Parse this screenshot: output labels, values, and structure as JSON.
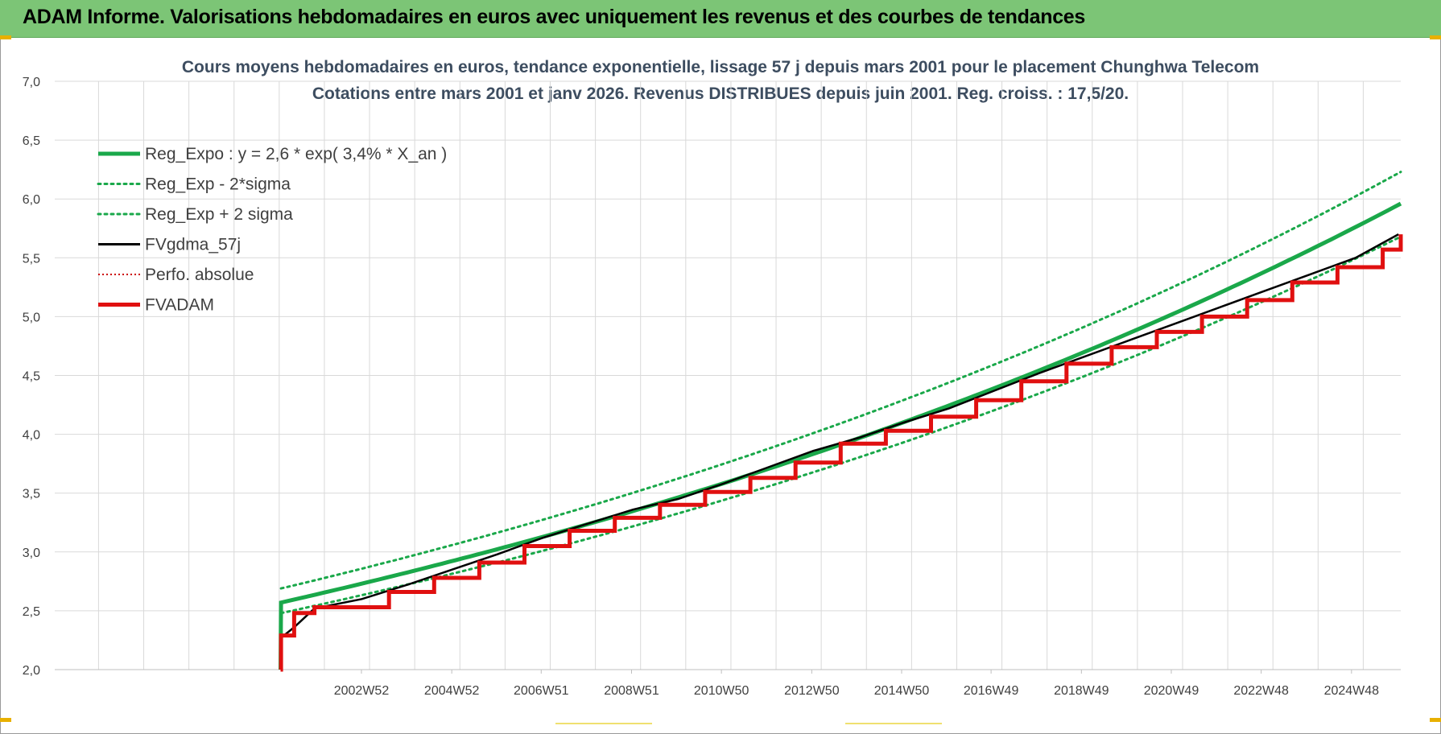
{
  "banner": {
    "title": "ADAM Informe. Valorisations hebdomadaires en euros avec uniquement les revenus et des courbes de tendances"
  },
  "chart_data": {
    "type": "line",
    "title": "Cours moyens hebdomadaires en euros, tendance exponentielle, lissage 57 j depuis mars 2001 pour le placement Chunghwa Telecom",
    "subtitle": "Cotations entre mars 2001 et janv 2026. Revenus DISTRIBUES depuis juin 2001. Reg. croiss. : 17,5/20.",
    "xlabel": "",
    "ylabel": "",
    "ylim": [
      2.0,
      7.0
    ],
    "xlim": [
      1996.2,
      2026.0
    ],
    "y_ticks": [
      "2,0",
      "2,5",
      "3,0",
      "3,5",
      "4,0",
      "4,5",
      "5,0",
      "5,5",
      "6,0",
      "6,5",
      "7,0"
    ],
    "x_tick_labels": [
      "2002W52",
      "2004W52",
      "2006W51",
      "2008W51",
      "2010W50",
      "2012W50",
      "2014W50",
      "2016W49",
      "2018W49",
      "2020W49",
      "2022W48",
      "2024W48"
    ],
    "x_tick_positions": [
      2002.99,
      2004.99,
      2006.97,
      2008.97,
      2010.96,
      2012.96,
      2014.95,
      2016.93,
      2018.93,
      2020.92,
      2022.91,
      2024.91
    ],
    "grid": true,
    "legend_position": "top-left",
    "series": [
      {
        "name": "Reg_Expo : y = 2,6 * exp( 3,4% *  X_an )",
        "color": "#1aa84a",
        "style": "solid-thick",
        "x": [
          2001.2,
          2001.21,
          2026.0
        ],
        "y": [
          2.0,
          2.57,
          5.96
        ]
      },
      {
        "name": "Reg_Exp - 2*sigma",
        "color": "#1aa84a",
        "style": "dotted",
        "x": [
          2001.21,
          2026.0
        ],
        "y": [
          2.48,
          5.68
        ]
      },
      {
        "name": "Reg_Exp + 2 sigma",
        "color": "#1aa84a",
        "style": "dotted",
        "x": [
          2001.21,
          2026.0
        ],
        "y": [
          2.69,
          6.23
        ]
      },
      {
        "name": "FVgdma_57j",
        "color": "#000000",
        "style": "solid-smooth",
        "x": [
          2001.21,
          2001.5,
          2001.95,
          2003.0,
          2004.0,
          2005.0,
          2006.0,
          2007.0,
          2008.0,
          2009.0,
          2010.0,
          2011.0,
          2012.0,
          2013.0,
          2014.0,
          2015.0,
          2016.0,
          2017.0,
          2018.0,
          2019.0,
          2020.0,
          2021.0,
          2022.0,
          2023.0,
          2024.0,
          2025.0,
          2025.95
        ],
        "y": [
          2.27,
          2.36,
          2.52,
          2.6,
          2.72,
          2.85,
          2.98,
          3.12,
          3.24,
          3.36,
          3.45,
          3.58,
          3.72,
          3.86,
          3.97,
          4.1,
          4.22,
          4.37,
          4.52,
          4.66,
          4.8,
          4.94,
          5.08,
          5.22,
          5.36,
          5.5,
          5.7
        ]
      },
      {
        "name": "Perfo. absolue",
        "color": "#cc0000",
        "style": "dotted-thin",
        "x": [],
        "y": []
      },
      {
        "name": "FVADAM",
        "color": "#e01010",
        "style": "step-thick",
        "x": [
          2001.2,
          2001.21,
          2001.5,
          2001.95,
          2003.6,
          2004.6,
          2005.6,
          2006.6,
          2007.6,
          2008.6,
          2009.6,
          2010.6,
          2011.6,
          2012.6,
          2013.6,
          2014.6,
          2015.6,
          2016.6,
          2017.6,
          2018.6,
          2019.6,
          2020.6,
          2021.6,
          2022.6,
          2023.6,
          2024.6,
          2025.6,
          2026.0
        ],
        "y": [
          2.0,
          2.29,
          2.48,
          2.53,
          2.66,
          2.78,
          2.91,
          3.05,
          3.18,
          3.29,
          3.4,
          3.51,
          3.63,
          3.76,
          3.92,
          4.03,
          4.15,
          4.29,
          4.45,
          4.6,
          4.74,
          4.87,
          5.0,
          5.14,
          5.29,
          5.42,
          5.57,
          5.7
        ]
      }
    ]
  }
}
